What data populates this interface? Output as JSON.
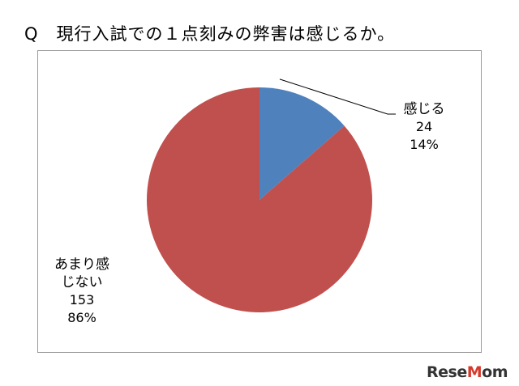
{
  "title": "Q　現行入試での１点刻みの弊害は感じるか。",
  "chart_data": {
    "type": "pie",
    "title": "",
    "start_angle_deg": 0,
    "direction": "clockwise",
    "slices": [
      {
        "label": "感じる",
        "value": 24,
        "percent": "14%",
        "color": "#4f81bd"
      },
      {
        "label_lines": [
          "あまり感",
          "じない"
        ],
        "value": 153,
        "percent": "86%",
        "color": "#c0504d"
      }
    ],
    "leader_line_color": "#000000"
  },
  "watermark": {
    "logo_main": "Rese",
    "logo_accent": "M",
    "logo_tail": "om"
  }
}
